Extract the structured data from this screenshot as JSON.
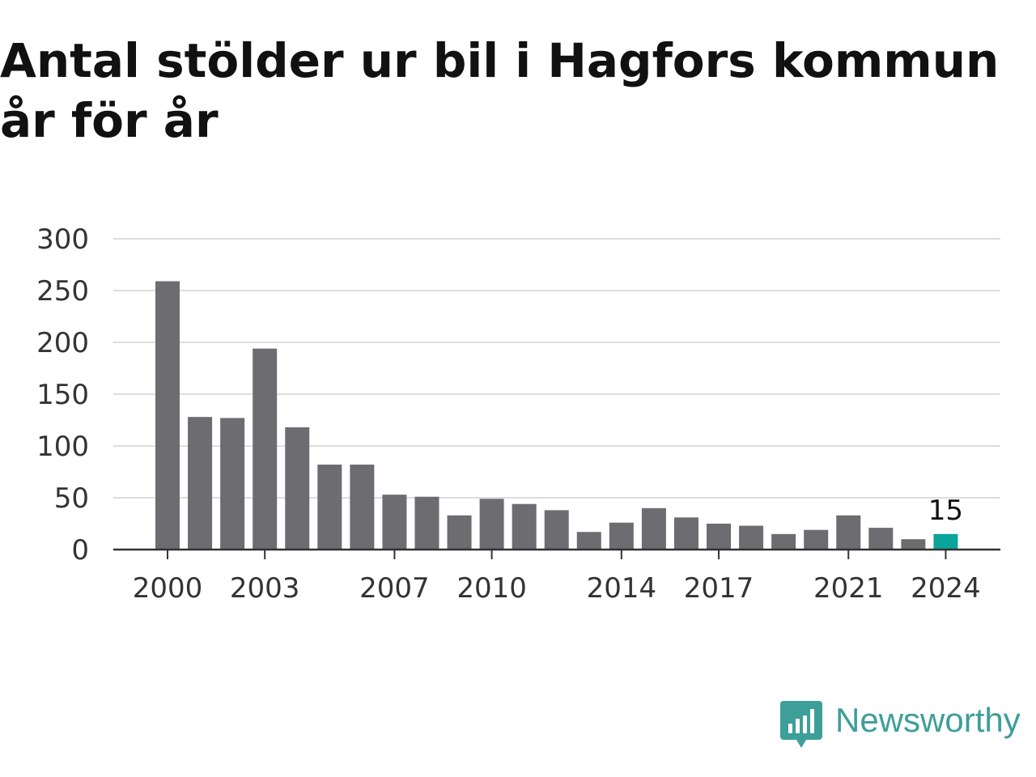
{
  "title_lines": [
    "Antal stölder ur bil i Hagfors kommun",
    "år för år"
  ],
  "brand": {
    "name": "Newsworthy",
    "icon": "newsworthy-logo-icon",
    "color": "#3e9e9a"
  },
  "chart_data": {
    "type": "bar",
    "title": "Antal stölder ur bil i Hagfors kommun år för år",
    "xlabel": "",
    "ylabel": "",
    "ylim": [
      0,
      300
    ],
    "y_ticks": [
      0,
      50,
      100,
      150,
      200,
      250,
      300
    ],
    "x_tick_labels": [
      "2000",
      "2003",
      "2007",
      "2010",
      "2014",
      "2017",
      "2021",
      "2024"
    ],
    "categories": [
      "2000",
      "2001",
      "2002",
      "2003",
      "2004",
      "2005",
      "2006",
      "2007",
      "2008",
      "2009",
      "2010",
      "2011",
      "2012",
      "2013",
      "2014",
      "2015",
      "2016",
      "2017",
      "2018",
      "2019",
      "2020",
      "2021",
      "2022",
      "2023",
      "2024"
    ],
    "values": [
      259,
      128,
      127,
      194,
      118,
      82,
      82,
      53,
      51,
      33,
      49,
      44,
      38,
      17,
      26,
      40,
      31,
      25,
      23,
      15,
      19,
      33,
      21,
      10,
      15
    ],
    "highlight": {
      "category": "2024",
      "label": "15"
    },
    "grid": true,
    "legend": "none",
    "colors": {
      "bar": "#6d6c71",
      "highlight": "#0ba49a",
      "grid": "#dddddd",
      "axis": "#333333",
      "text": "#333333"
    }
  }
}
